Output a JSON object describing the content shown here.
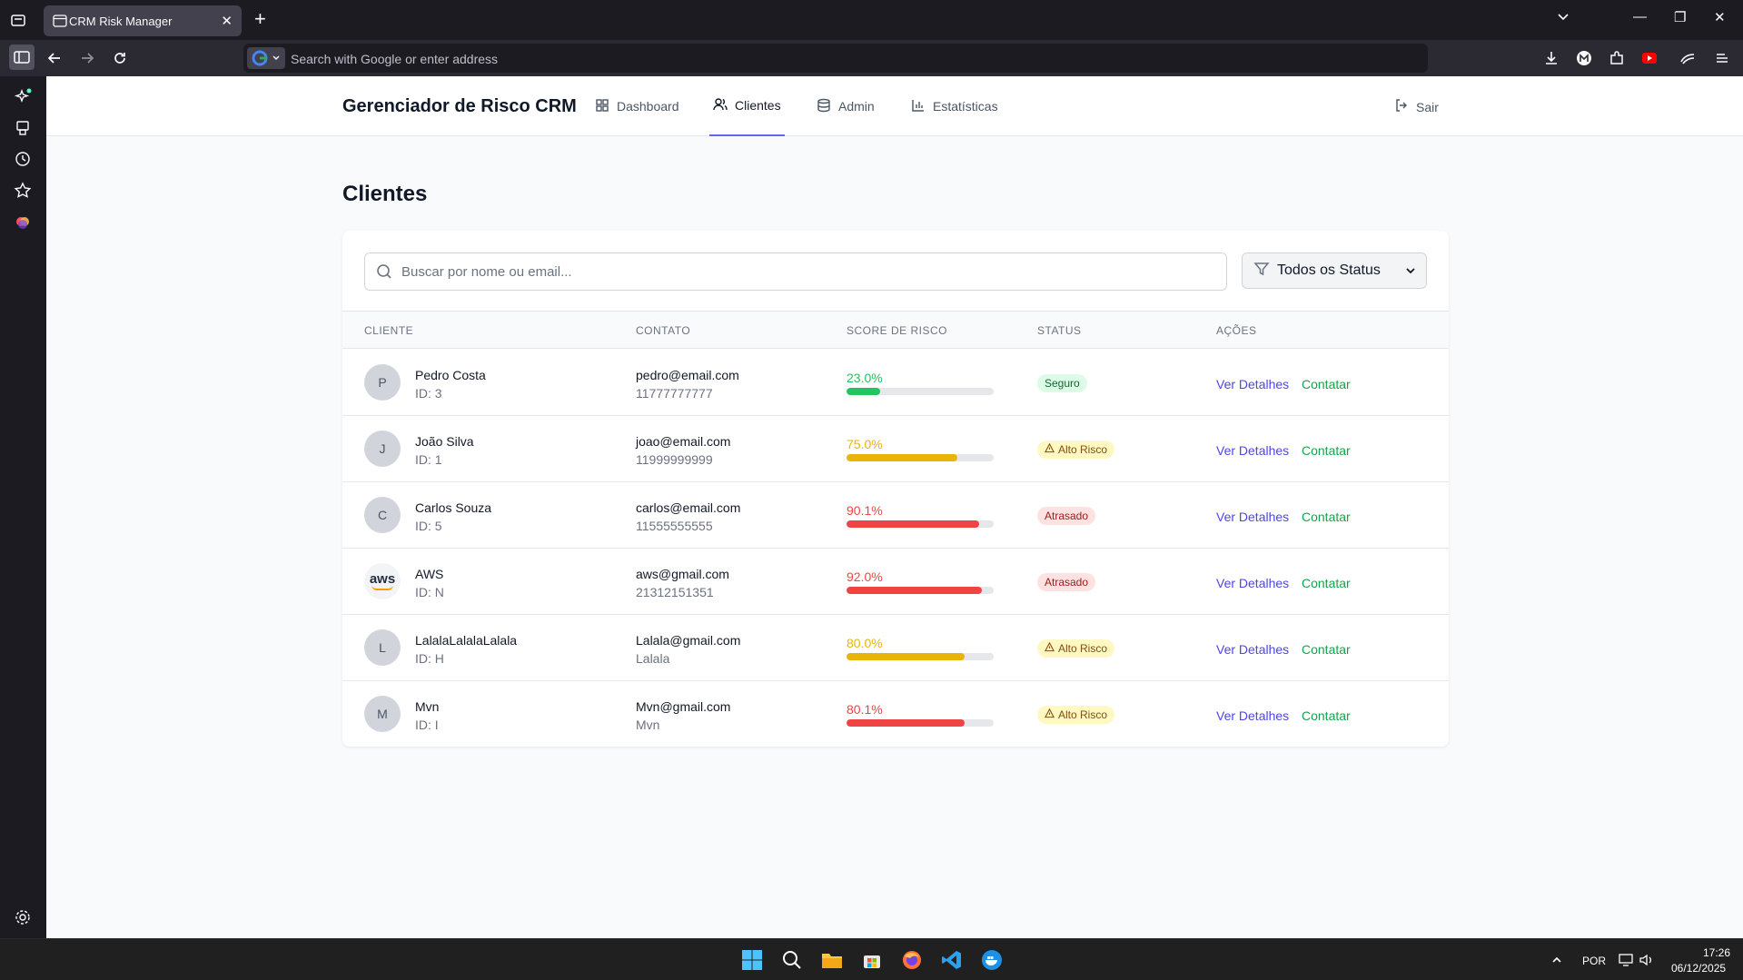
{
  "browser": {
    "tab_title": "CRM Risk Manager",
    "url_placeholder": "Search with Google or enter address"
  },
  "app": {
    "brand": "Gerenciador de Risco CRM",
    "nav": {
      "dashboard": "Dashboard",
      "clientes": "Clientes",
      "admin": "Admin",
      "estatisticas": "Estatísticas"
    },
    "logout": "Sair",
    "active_nav": "clientes"
  },
  "page": {
    "title": "Clientes",
    "search_placeholder": "Buscar por nome ou email...",
    "status_filter": "Todos os Status"
  },
  "table": {
    "headers": {
      "cliente": "CLIENTE",
      "contato": "CONTATO",
      "score": "SCORE DE RISCO",
      "status": "STATUS",
      "acoes": "AÇÕES"
    },
    "action_details": "Ver Detalhes",
    "action_contact": "Contatar",
    "rows": [
      {
        "initial": "P",
        "name": "Pedro Costa",
        "id": "ID: 3",
        "email": "pedro@email.com",
        "phone": "11777777777",
        "score_label": "23.0%",
        "score": 23.0,
        "status": "Seguro",
        "status_kind": "safe"
      },
      {
        "initial": "J",
        "name": "João Silva",
        "id": "ID: 1",
        "email": "joao@email.com",
        "phone": "11999999999",
        "score_label": "75.0%",
        "score": 75.0,
        "status": "Alto Risco",
        "status_kind": "high"
      },
      {
        "initial": "C",
        "name": "Carlos Souza",
        "id": "ID: 5",
        "email": "carlos@email.com",
        "phone": "11555555555",
        "score_label": "90.1%",
        "score": 90.1,
        "status": "Atrasado",
        "status_kind": "late"
      },
      {
        "initial": "aws",
        "name": "AWS",
        "id": "ID: N",
        "email": "aws@gmail.com",
        "phone": "21312151351",
        "score_label": "92.0%",
        "score": 92.0,
        "status": "Atrasado",
        "status_kind": "late"
      },
      {
        "initial": "L",
        "name": "LalalaLalalaLalala",
        "id": "ID: H",
        "email": "Lalala@gmail.com",
        "phone": "Lalala",
        "score_label": "80.0%",
        "score": 80.0,
        "status": "Alto Risco",
        "status_kind": "high"
      },
      {
        "initial": "M",
        "name": "Mvn",
        "id": "ID: I",
        "email": "Mvn@gmail.com",
        "phone": "Mvn",
        "score_label": "80.1%",
        "score": 80.1,
        "status": "Alto Risco",
        "status_kind": "high"
      }
    ]
  },
  "colors": {
    "accent": "#6366f1",
    "score_green": "#22c55e",
    "score_amber": "#eab308",
    "score_red": "#ef4444",
    "badge_safe_bg": "#dcfce7",
    "badge_safe_fg": "#166534",
    "badge_high_bg": "#fef9c3",
    "badge_high_fg": "#854d0e",
    "badge_late_bg": "#fee2e2",
    "badge_late_fg": "#991b1b"
  },
  "taskbar": {
    "lang": "POR",
    "time": "17:26",
    "date": "06/12/2025"
  }
}
